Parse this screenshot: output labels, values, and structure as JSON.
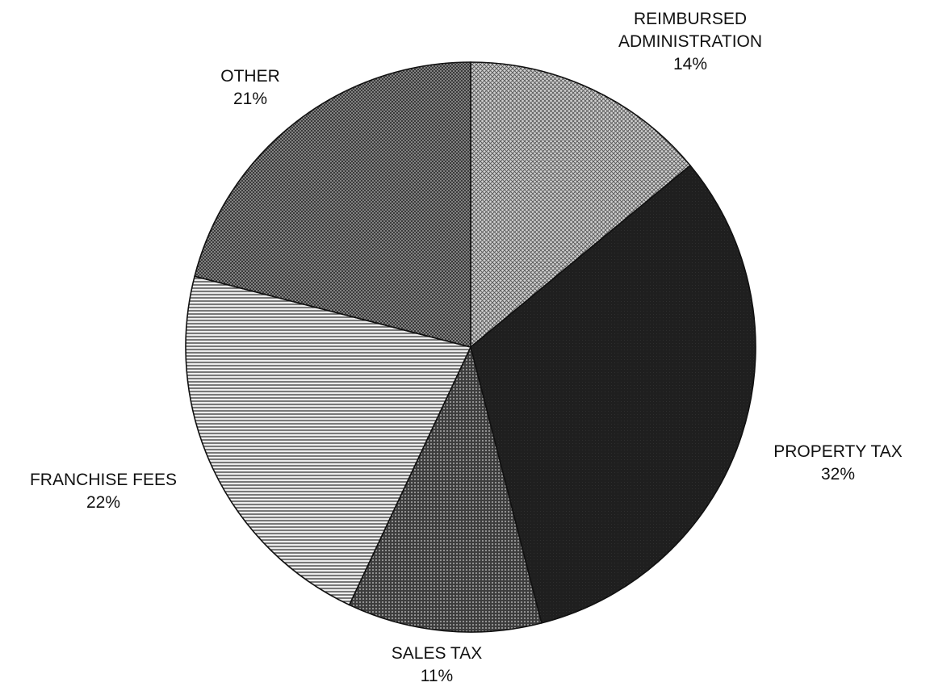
{
  "chart_data": {
    "type": "pie",
    "slices": [
      {
        "label": "REIMBURSED ADMINISTRATION",
        "label_lines": [
          "REIMBURSED",
          "ADMINISTRATION"
        ],
        "percent_label": "14%",
        "value": 14,
        "fill": "#9a9a9a",
        "pattern": "fine-cross"
      },
      {
        "label": "PROPERTY TAX",
        "label_lines": [
          "PROPERTY TAX"
        ],
        "percent_label": "32%",
        "value": 32,
        "fill": "#232323",
        "pattern": "solid-dark"
      },
      {
        "label": "SALES TAX",
        "label_lines": [
          "SALES TAX"
        ],
        "percent_label": "11%",
        "value": 11,
        "fill": "#5a5a5a",
        "pattern": "dark-dots"
      },
      {
        "label": "FRANCHISE FEES",
        "label_lines": [
          "FRANCHISE FEES"
        ],
        "percent_label": "22%",
        "value": 22,
        "fill": "#b9b9b9",
        "pattern": "horizontal-lines"
      },
      {
        "label": "OTHER",
        "label_lines": [
          "OTHER"
        ],
        "percent_label": "21%",
        "value": 21,
        "fill": "#7f7f7f",
        "pattern": "cross-hatch"
      }
    ],
    "start_angle_deg": 0,
    "direction": "clockwise"
  }
}
